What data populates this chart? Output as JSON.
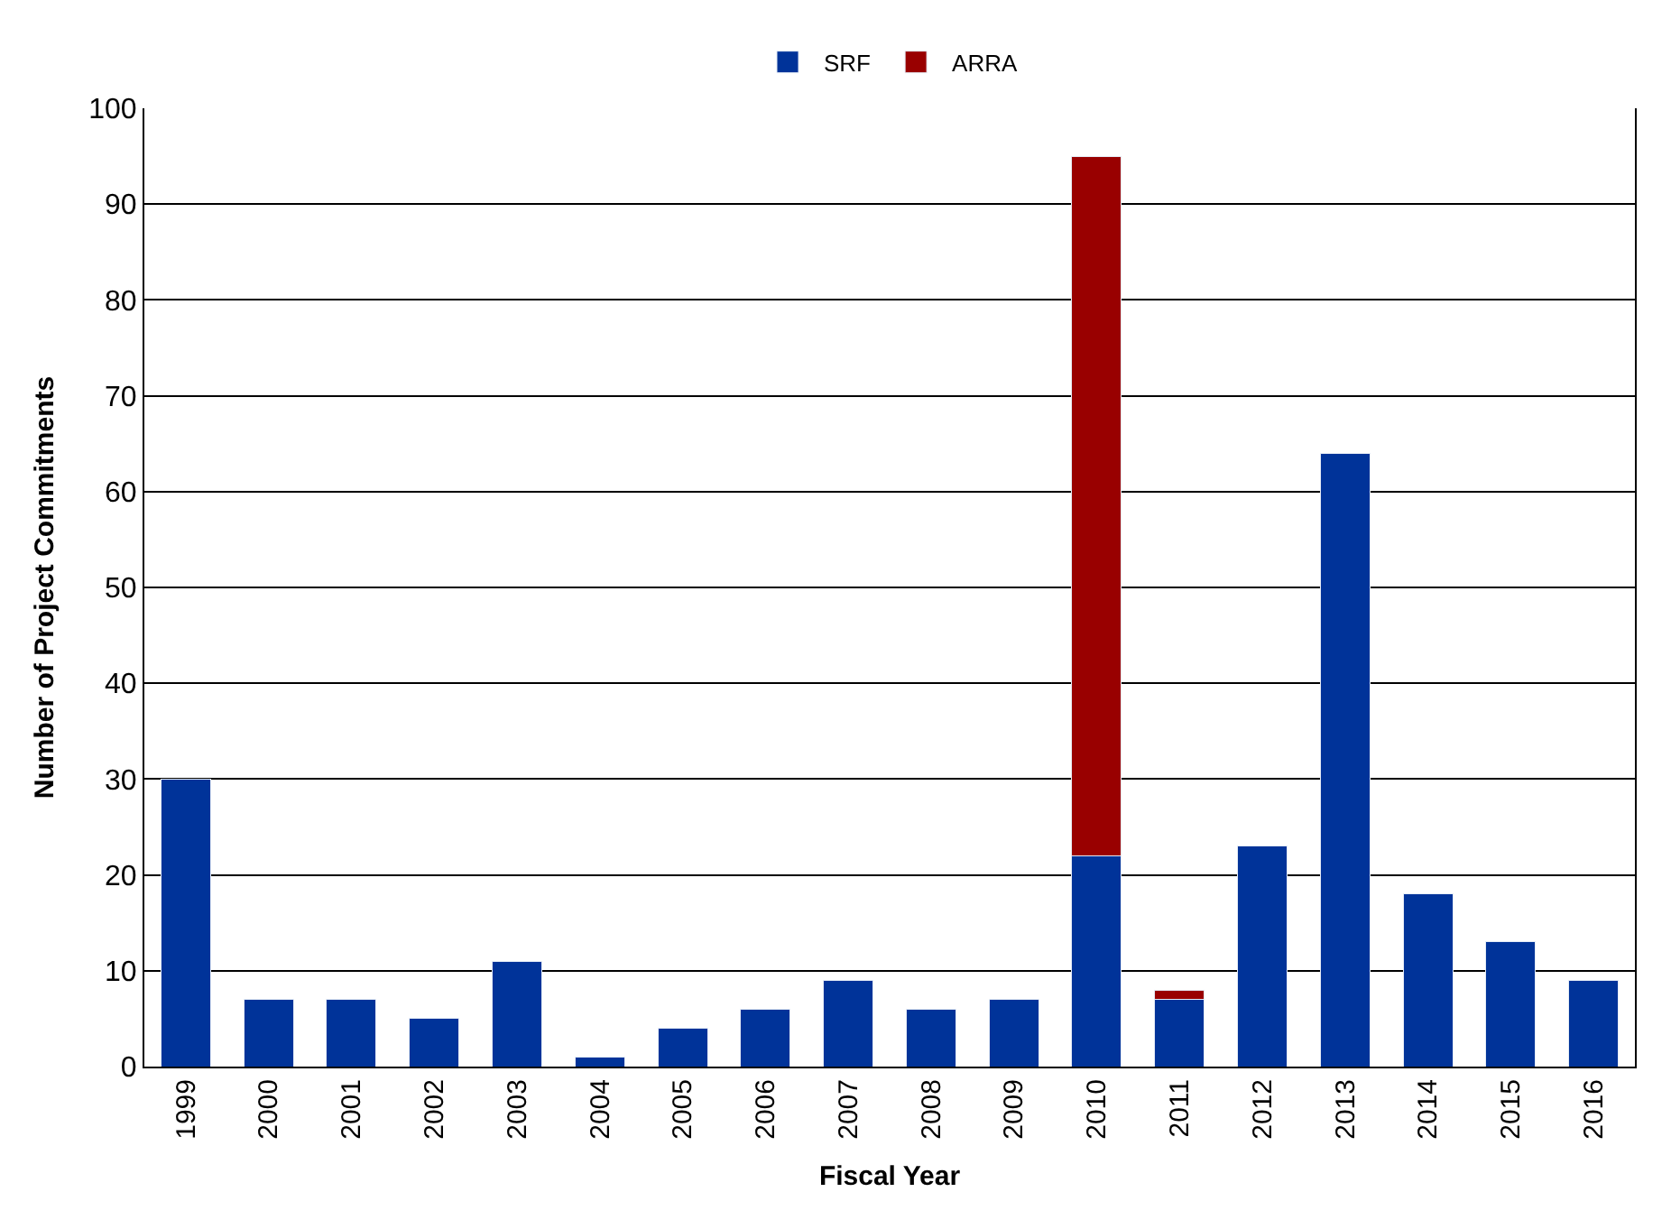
{
  "chart_data": {
    "type": "bar",
    "stacked": true,
    "xlabel": "Fiscal Year",
    "ylabel": "Number of Project Commitments",
    "categories": [
      "1999",
      "2000",
      "2001",
      "2002",
      "2003",
      "2004",
      "2005",
      "2006",
      "2007",
      "2008",
      "2009",
      "2010",
      "2011",
      "2012",
      "2013",
      "2014",
      "2015",
      "2016"
    ],
    "series": [
      {
        "name": "SRF",
        "color": "#003399",
        "values": [
          30,
          7,
          7,
          5,
          11,
          1,
          4,
          6,
          9,
          6,
          7,
          22,
          7,
          23,
          64,
          18,
          13,
          9
        ]
      },
      {
        "name": "ARRA",
        "color": "#990000",
        "values": [
          null,
          null,
          null,
          null,
          null,
          null,
          null,
          null,
          null,
          null,
          null,
          73,
          1,
          null,
          null,
          null,
          null,
          null
        ]
      }
    ],
    "ylim": [
      0,
      100
    ],
    "yticks": [
      0,
      10,
      20,
      30,
      40,
      50,
      60,
      70,
      80,
      90,
      100
    ],
    "grid": "y",
    "legend": "top"
  }
}
